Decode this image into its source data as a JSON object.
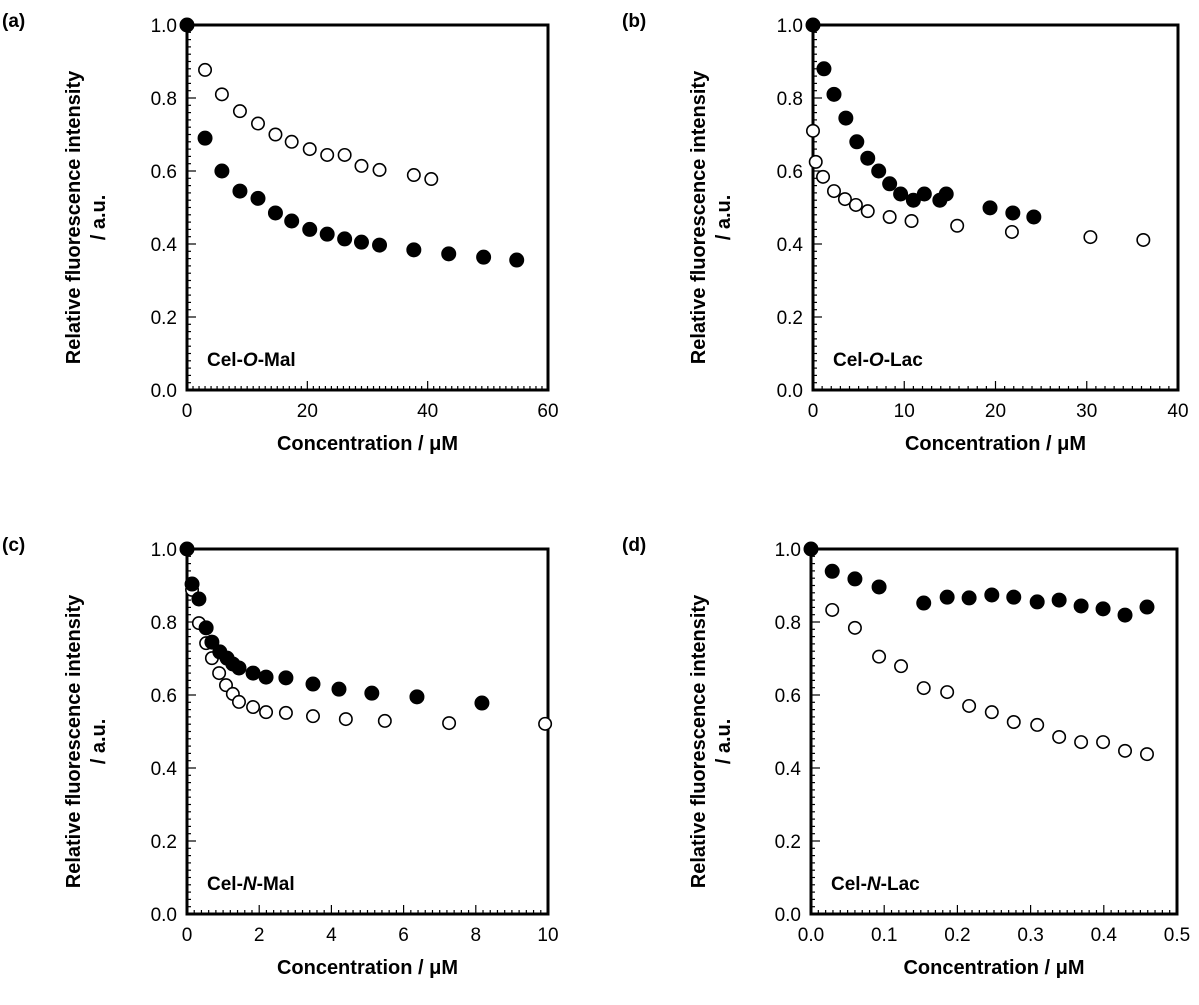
{
  "chart_data": [
    {
      "type": "scatter",
      "panel_label": "(a)",
      "annotation": {
        "pre": "Cel-",
        "italic": "O",
        "post": "-Mal"
      },
      "xlabel": "Concentration / μM",
      "ylabel": "Relative fluorescence intensity",
      "ylabel2": "/ a.u.",
      "xlim": [
        0,
        60
      ],
      "ylim": [
        0,
        1.0
      ],
      "xticks": [
        "0",
        "20",
        "40",
        "60"
      ],
      "xtick_values": [
        0,
        20,
        40,
        60
      ],
      "yticks": [
        "0.0",
        "0.2",
        "0.4",
        "0.6",
        "0.8",
        "1.0"
      ],
      "ytick_values": [
        0,
        0.2,
        0.4,
        0.6,
        0.8,
        1.0
      ],
      "series": [
        {
          "name": "filled",
          "marker": "filled-circle",
          "x": [
            0,
            3,
            5.8,
            8.8,
            11.8,
            14.7,
            17.4,
            20.4,
            23.3,
            26.2,
            29,
            32,
            37.7,
            43.5,
            49.3,
            54.8
          ],
          "y": [
            1.0,
            0.69,
            0.6,
            0.545,
            0.525,
            0.485,
            0.463,
            0.44,
            0.427,
            0.414,
            0.405,
            0.397,
            0.384,
            0.373,
            0.364,
            0.356
          ]
        },
        {
          "name": "open",
          "marker": "open-circle",
          "x": [
            3,
            5.8,
            8.8,
            11.8,
            14.7,
            17.4,
            20.4,
            23.3,
            26.2,
            29,
            32,
            37.7,
            40.6
          ],
          "y": [
            0.877,
            0.81,
            0.764,
            0.73,
            0.7,
            0.68,
            0.66,
            0.644,
            0.644,
            0.614,
            0.603,
            0.589,
            0.578
          ]
        }
      ]
    },
    {
      "type": "scatter",
      "panel_label": "(b)",
      "annotation": {
        "pre": "Cel-",
        "italic": "O",
        "post": "-Lac"
      },
      "xlabel": "Concentration / μM",
      "ylabel": "Relative fluorescence intensity",
      "ylabel2": "/ a.u.",
      "xlim": [
        0,
        40
      ],
      "ylim": [
        0,
        1.0
      ],
      "xticks": [
        "0",
        "10",
        "20",
        "30",
        "40"
      ],
      "xtick_values": [
        0,
        10,
        20,
        30,
        40
      ],
      "yticks": [
        "0.0",
        "0.2",
        "0.4",
        "0.6",
        "0.8",
        "1.0"
      ],
      "ytick_values": [
        0,
        0.2,
        0.4,
        0.6,
        0.8,
        1.0
      ],
      "series": [
        {
          "name": "filled",
          "marker": "filled-circle",
          "x": [
            0,
            1.2,
            2.3,
            3.6,
            4.8,
            6,
            7.2,
            8.4,
            9.6,
            11,
            12.2,
            13.9,
            14.6,
            19.4,
            21.9,
            24.2
          ],
          "y": [
            1.0,
            0.88,
            0.81,
            0.745,
            0.68,
            0.635,
            0.6,
            0.565,
            0.537,
            0.52,
            0.537,
            0.52,
            0.537,
            0.499,
            0.485,
            0.474
          ]
        },
        {
          "name": "open",
          "marker": "open-circle",
          "x": [
            0,
            0.3,
            1.1,
            2.3,
            3.5,
            4.7,
            6,
            8.4,
            10.8,
            15.8,
            21.8,
            30.4,
            36.2
          ],
          "y": [
            0.71,
            0.625,
            0.584,
            0.545,
            0.523,
            0.507,
            0.49,
            0.474,
            0.463,
            0.45,
            0.433,
            0.419,
            0.411
          ]
        }
      ]
    },
    {
      "type": "scatter",
      "panel_label": "(c)",
      "annotation": {
        "pre": "Cel-",
        "italic": "N",
        "post": "-Mal"
      },
      "xlabel": "Concentration / μM",
      "ylabel": "Relative fluorescence intensity",
      "ylabel2": "/ a.u.",
      "xlim": [
        0,
        10
      ],
      "ylim": [
        0,
        1.0
      ],
      "xticks": [
        "0",
        "2",
        "4",
        "6",
        "8",
        "10"
      ],
      "xtick_values": [
        0,
        2,
        4,
        6,
        8,
        10
      ],
      "yticks": [
        "0.0",
        "0.2",
        "0.4",
        "0.6",
        "0.8",
        "1.0"
      ],
      "ytick_values": [
        0,
        0.2,
        0.4,
        0.6,
        0.8,
        1.0
      ],
      "series": [
        {
          "name": "filled",
          "marker": "filled-circle",
          "x": [
            0,
            0.14,
            0.33,
            0.53,
            0.69,
            0.91,
            1.11,
            1.27,
            1.44,
            1.83,
            2.19,
            2.74,
            3.49,
            4.21,
            5.12,
            6.37,
            8.17
          ],
          "y": [
            1.0,
            0.904,
            0.863,
            0.784,
            0.745,
            0.718,
            0.701,
            0.685,
            0.674,
            0.66,
            0.649,
            0.647,
            0.63,
            0.616,
            0.605,
            0.595,
            0.578
          ]
        },
        {
          "name": "open",
          "marker": "open-circle",
          "x": [
            0.14,
            0.33,
            0.53,
            0.69,
            0.89,
            1.08,
            1.27,
            1.44,
            1.83,
            2.19,
            2.74,
            3.49,
            4.4,
            5.48,
            7.26,
            9.92
          ],
          "y": [
            0.888,
            0.797,
            0.742,
            0.701,
            0.66,
            0.627,
            0.603,
            0.581,
            0.567,
            0.553,
            0.551,
            0.542,
            0.534,
            0.529,
            0.523,
            0.521
          ]
        }
      ]
    },
    {
      "type": "scatter",
      "panel_label": "(d)",
      "annotation": {
        "pre": "Cel-",
        "italic": "N",
        "post": "-Lac"
      },
      "xlabel": "Concentration / μM",
      "ylabel": "Relative fluorescence intensity",
      "ylabel2": "/ a.u.",
      "xlim": [
        0,
        0.5
      ],
      "ylim": [
        0,
        1.0
      ],
      "xticks": [
        "0.0",
        "0.1",
        "0.2",
        "0.3",
        "0.4",
        "0.5"
      ],
      "xtick_values": [
        0,
        0.1,
        0.2,
        0.3,
        0.4,
        0.5
      ],
      "yticks": [
        "0.0",
        "0.2",
        "0.4",
        "0.6",
        "0.8",
        "1.0"
      ],
      "ytick_values": [
        0,
        0.2,
        0.4,
        0.6,
        0.8,
        1.0
      ],
      "series": [
        {
          "name": "filled",
          "marker": "filled-circle",
          "x": [
            0,
            0.029,
            0.06,
            0.093,
            0.154,
            0.186,
            0.216,
            0.247,
            0.277,
            0.309,
            0.339,
            0.369,
            0.399,
            0.429,
            0.459
          ],
          "y": [
            1.0,
            0.939,
            0.918,
            0.896,
            0.852,
            0.868,
            0.866,
            0.874,
            0.868,
            0.855,
            0.86,
            0.844,
            0.836,
            0.819,
            0.841
          ]
        },
        {
          "name": "open",
          "marker": "open-circle",
          "x": [
            0.029,
            0.06,
            0.093,
            0.123,
            0.154,
            0.186,
            0.216,
            0.247,
            0.277,
            0.309,
            0.339,
            0.369,
            0.399,
            0.429,
            0.459
          ],
          "y": [
            0.833,
            0.784,
            0.705,
            0.679,
            0.619,
            0.608,
            0.57,
            0.553,
            0.526,
            0.518,
            0.485,
            0.471,
            0.471,
            0.447,
            0.438
          ]
        }
      ]
    }
  ]
}
